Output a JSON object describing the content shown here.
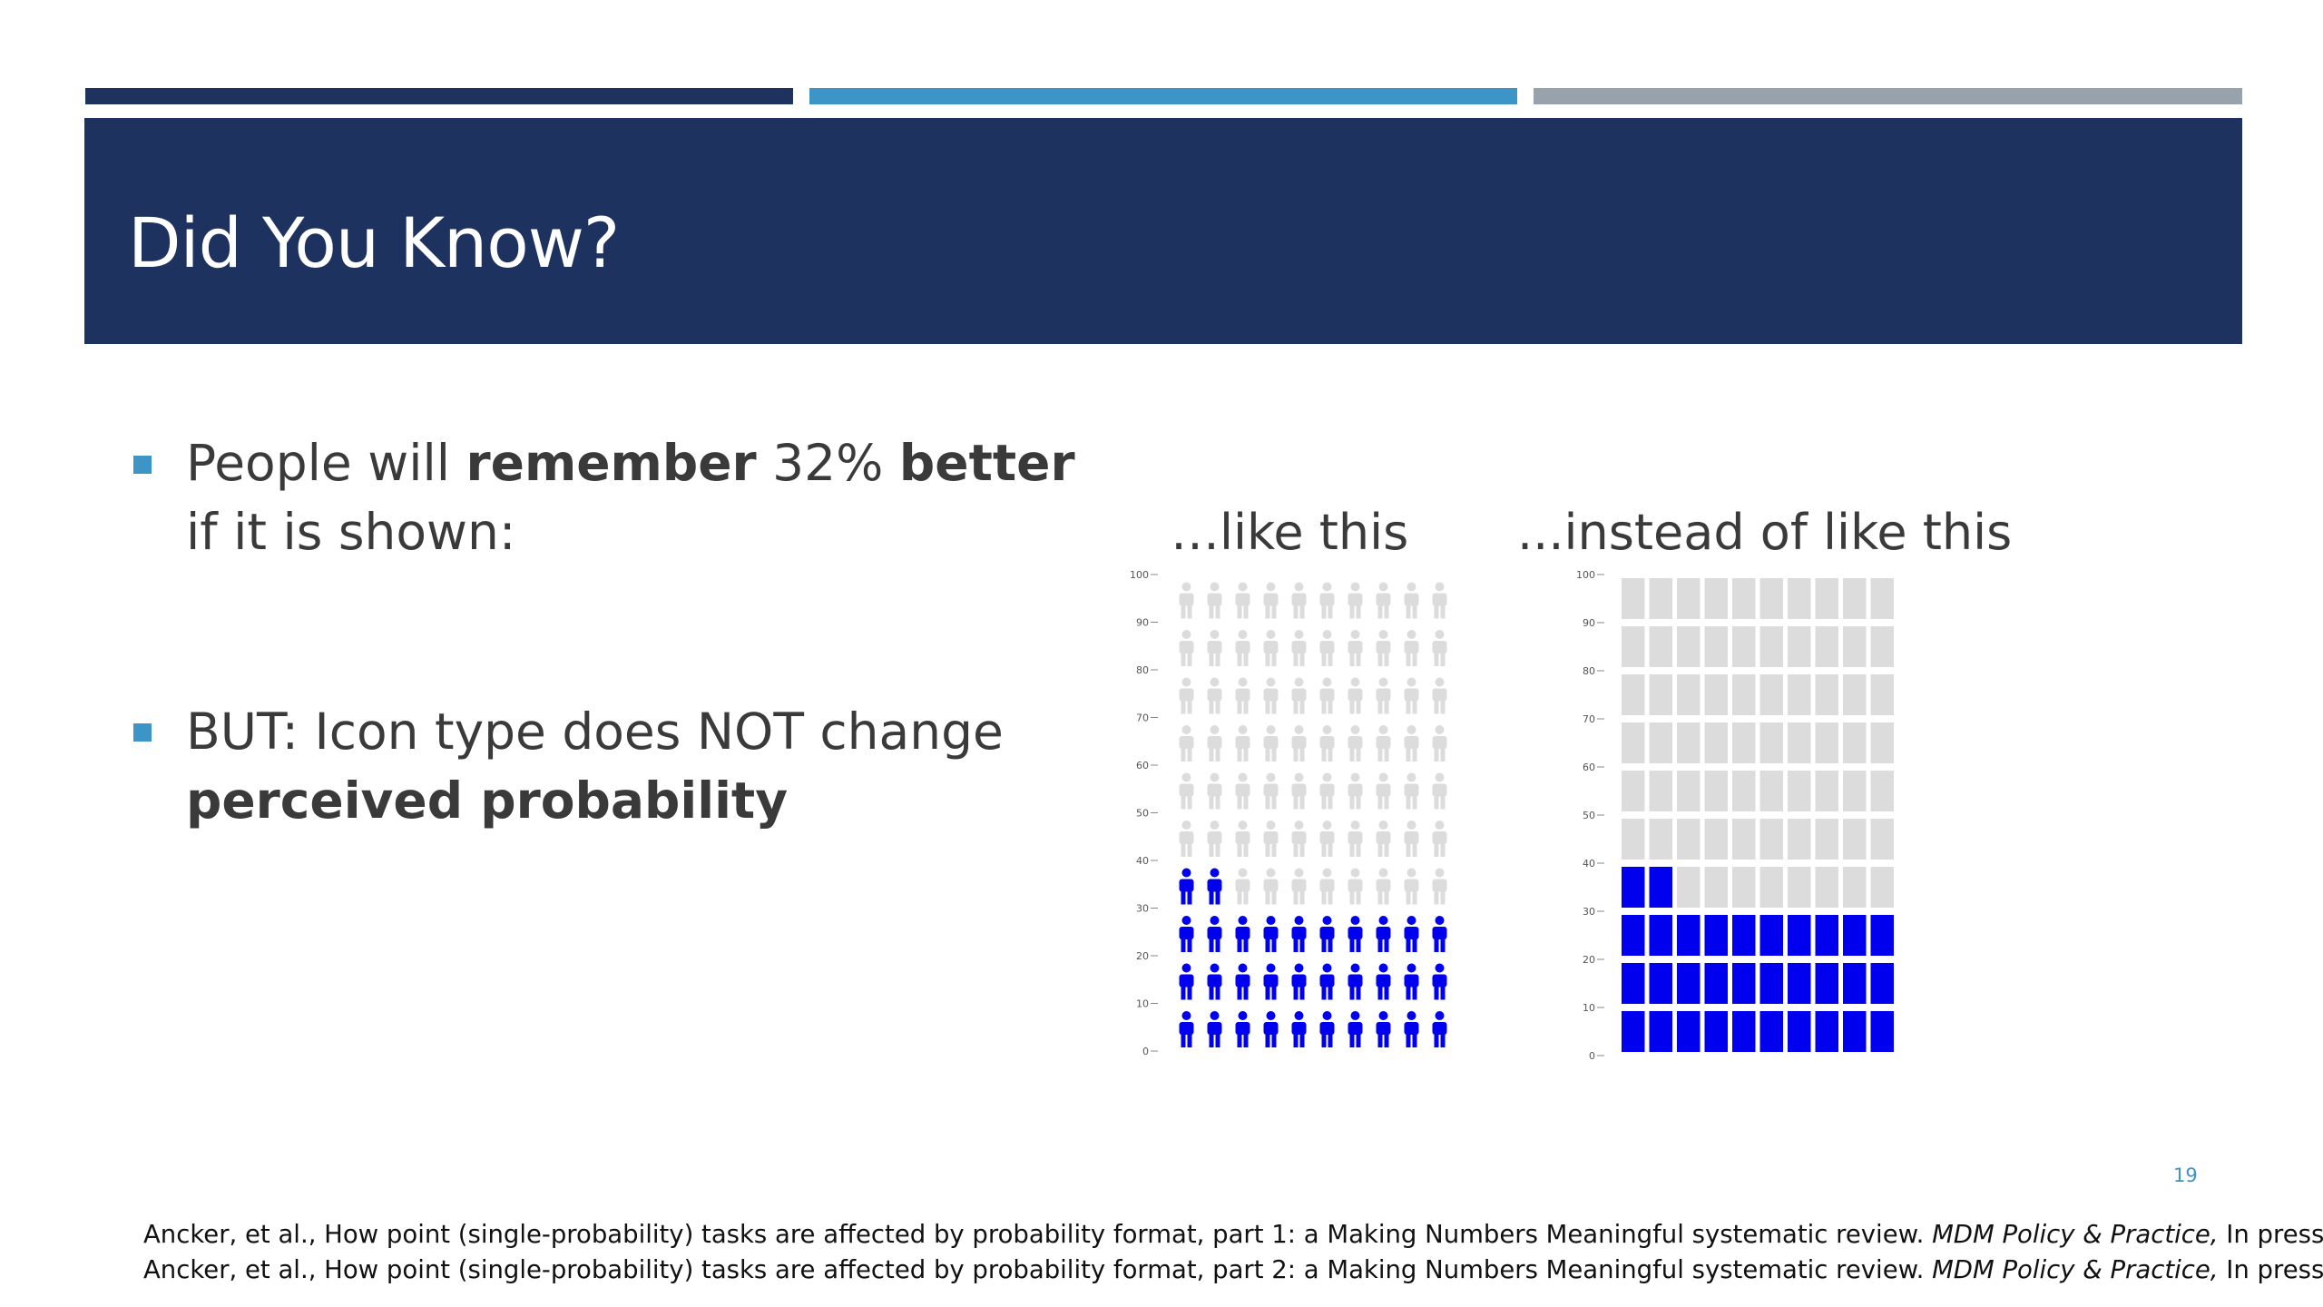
{
  "slide": {
    "title": "Did You Know?",
    "page_number": "19"
  },
  "bullets": [
    {
      "pre": "People will ",
      "b1": "remember",
      "mid": " 32% ",
      "b2": "better",
      "line2": "if it is shown:"
    },
    {
      "line1": "BUT: Icon type does NOT change",
      "line2_bold": "perceived probability"
    }
  ],
  "colors": {
    "header": "#1e3260",
    "accent": "#3c95c6",
    "gray_bar": "#98a2ac",
    "filled": "#0000ee",
    "empty": "#dcdcdc"
  },
  "chart_data": [
    {
      "type": "icon-array",
      "title": "…like this",
      "icon": "person-icon",
      "rows": 10,
      "cols": 10,
      "filled_count": 32,
      "total": 100,
      "y_ticks": [
        "0",
        "10",
        "20",
        "30",
        "40",
        "50",
        "60",
        "70",
        "80",
        "90",
        "100"
      ]
    },
    {
      "type": "icon-array",
      "title": "...instead of like this",
      "icon": "block-icon",
      "rows": 10,
      "cols": 10,
      "filled_count": 32,
      "total": 100,
      "y_ticks": [
        "0",
        "10",
        "20",
        "30",
        "40",
        "50",
        "60",
        "70",
        "80",
        "90",
        "100"
      ]
    }
  ],
  "footnotes": [
    {
      "text": "Ancker, et al., How point (single-probability) tasks are affected by probability format, part 1: a Making Numbers Meaningful systematic review. ",
      "journal": "MDM Policy & Practice,",
      "tail": " In press."
    },
    {
      "text": "Ancker, et al., How point (single-probability) tasks are affected by probability format, part 2: a Making Numbers Meaningful systematic review. ",
      "journal": "MDM Policy & Practice,",
      "tail": " In press."
    }
  ]
}
